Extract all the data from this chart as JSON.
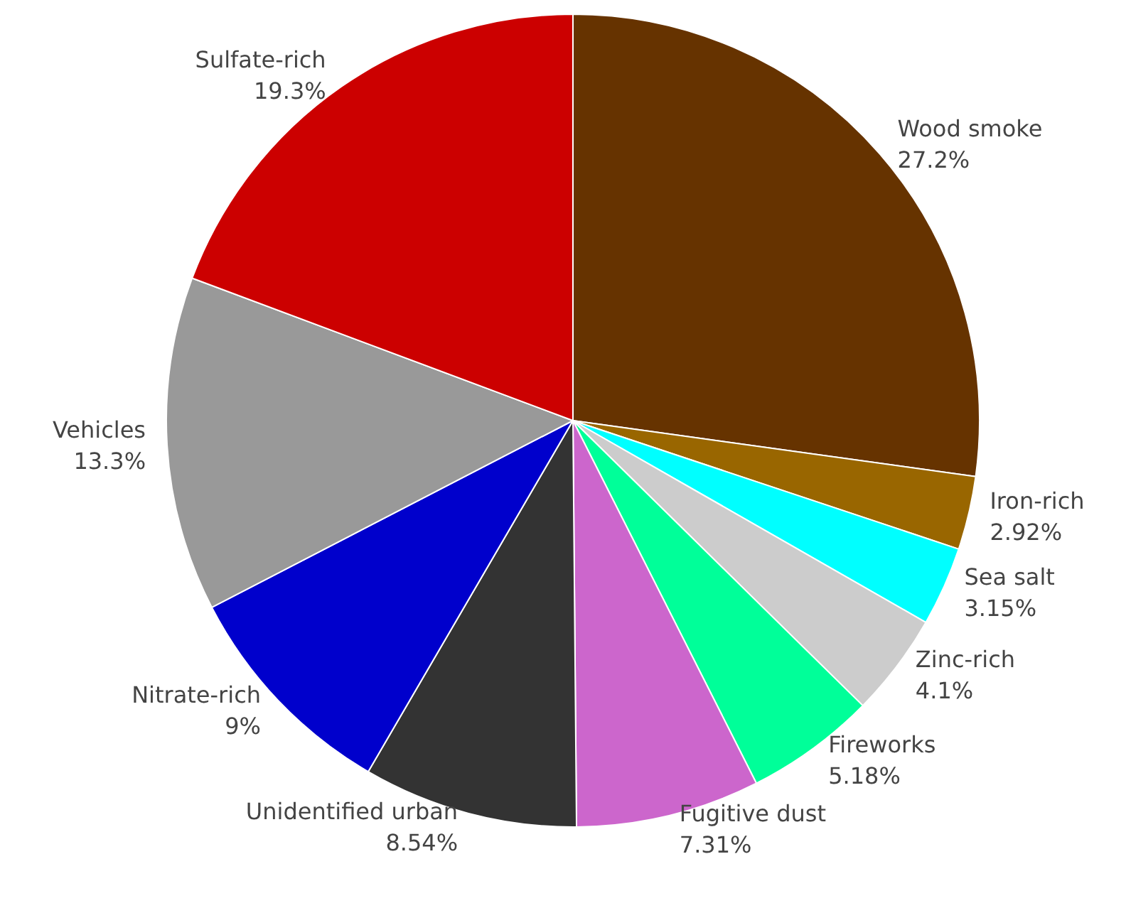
{
  "chart_data": {
    "type": "pie",
    "categories": [
      "Wood smoke",
      "Iron-rich",
      "Sea salt",
      "Zinc-rich",
      "Fireworks",
      "Fugitive dust",
      "Unidentified urban",
      "Nitrate-rich",
      "Vehicles",
      "Sulfate-rich"
    ],
    "values": [
      27.2,
      2.92,
      3.15,
      4.1,
      5.18,
      7.31,
      8.54,
      9,
      13.3,
      19.3
    ],
    "value_labels": [
      "27.2%",
      "2.92%",
      "3.15%",
      "4.1%",
      "5.18%",
      "7.31%",
      "8.54%",
      "9%",
      "13.3%",
      "19.3%"
    ],
    "colors": [
      "#663300",
      "#996600",
      "#00ffff",
      "#cccccc",
      "#00ff99",
      "#cc66cc",
      "#333333",
      "#0000cc",
      "#999999",
      "#cc0000"
    ],
    "legend": false
  }
}
